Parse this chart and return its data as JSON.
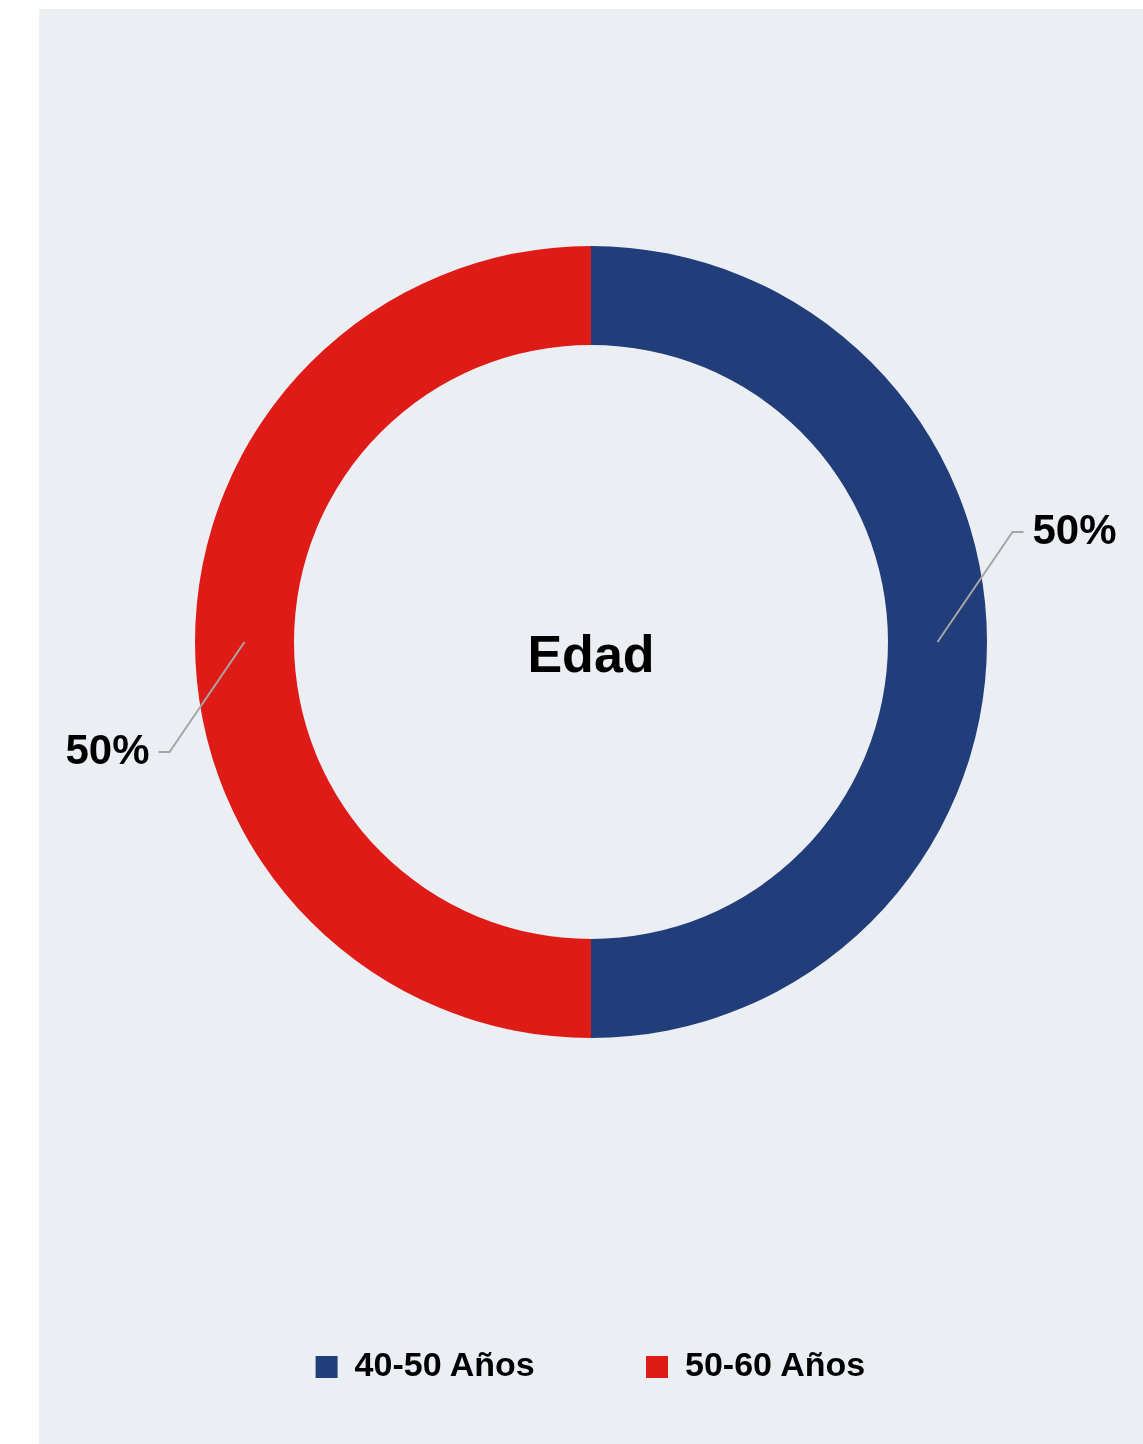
{
  "chart_data": {
    "type": "donut",
    "title": "Edad",
    "categories": [
      "40-50 Años",
      "50-60 Años"
    ],
    "values": [
      50,
      50
    ],
    "colors": [
      "#213d7a",
      "#df1b17"
    ],
    "value_labels": [
      "50%",
      "50%"
    ],
    "legend": "bottom"
  }
}
